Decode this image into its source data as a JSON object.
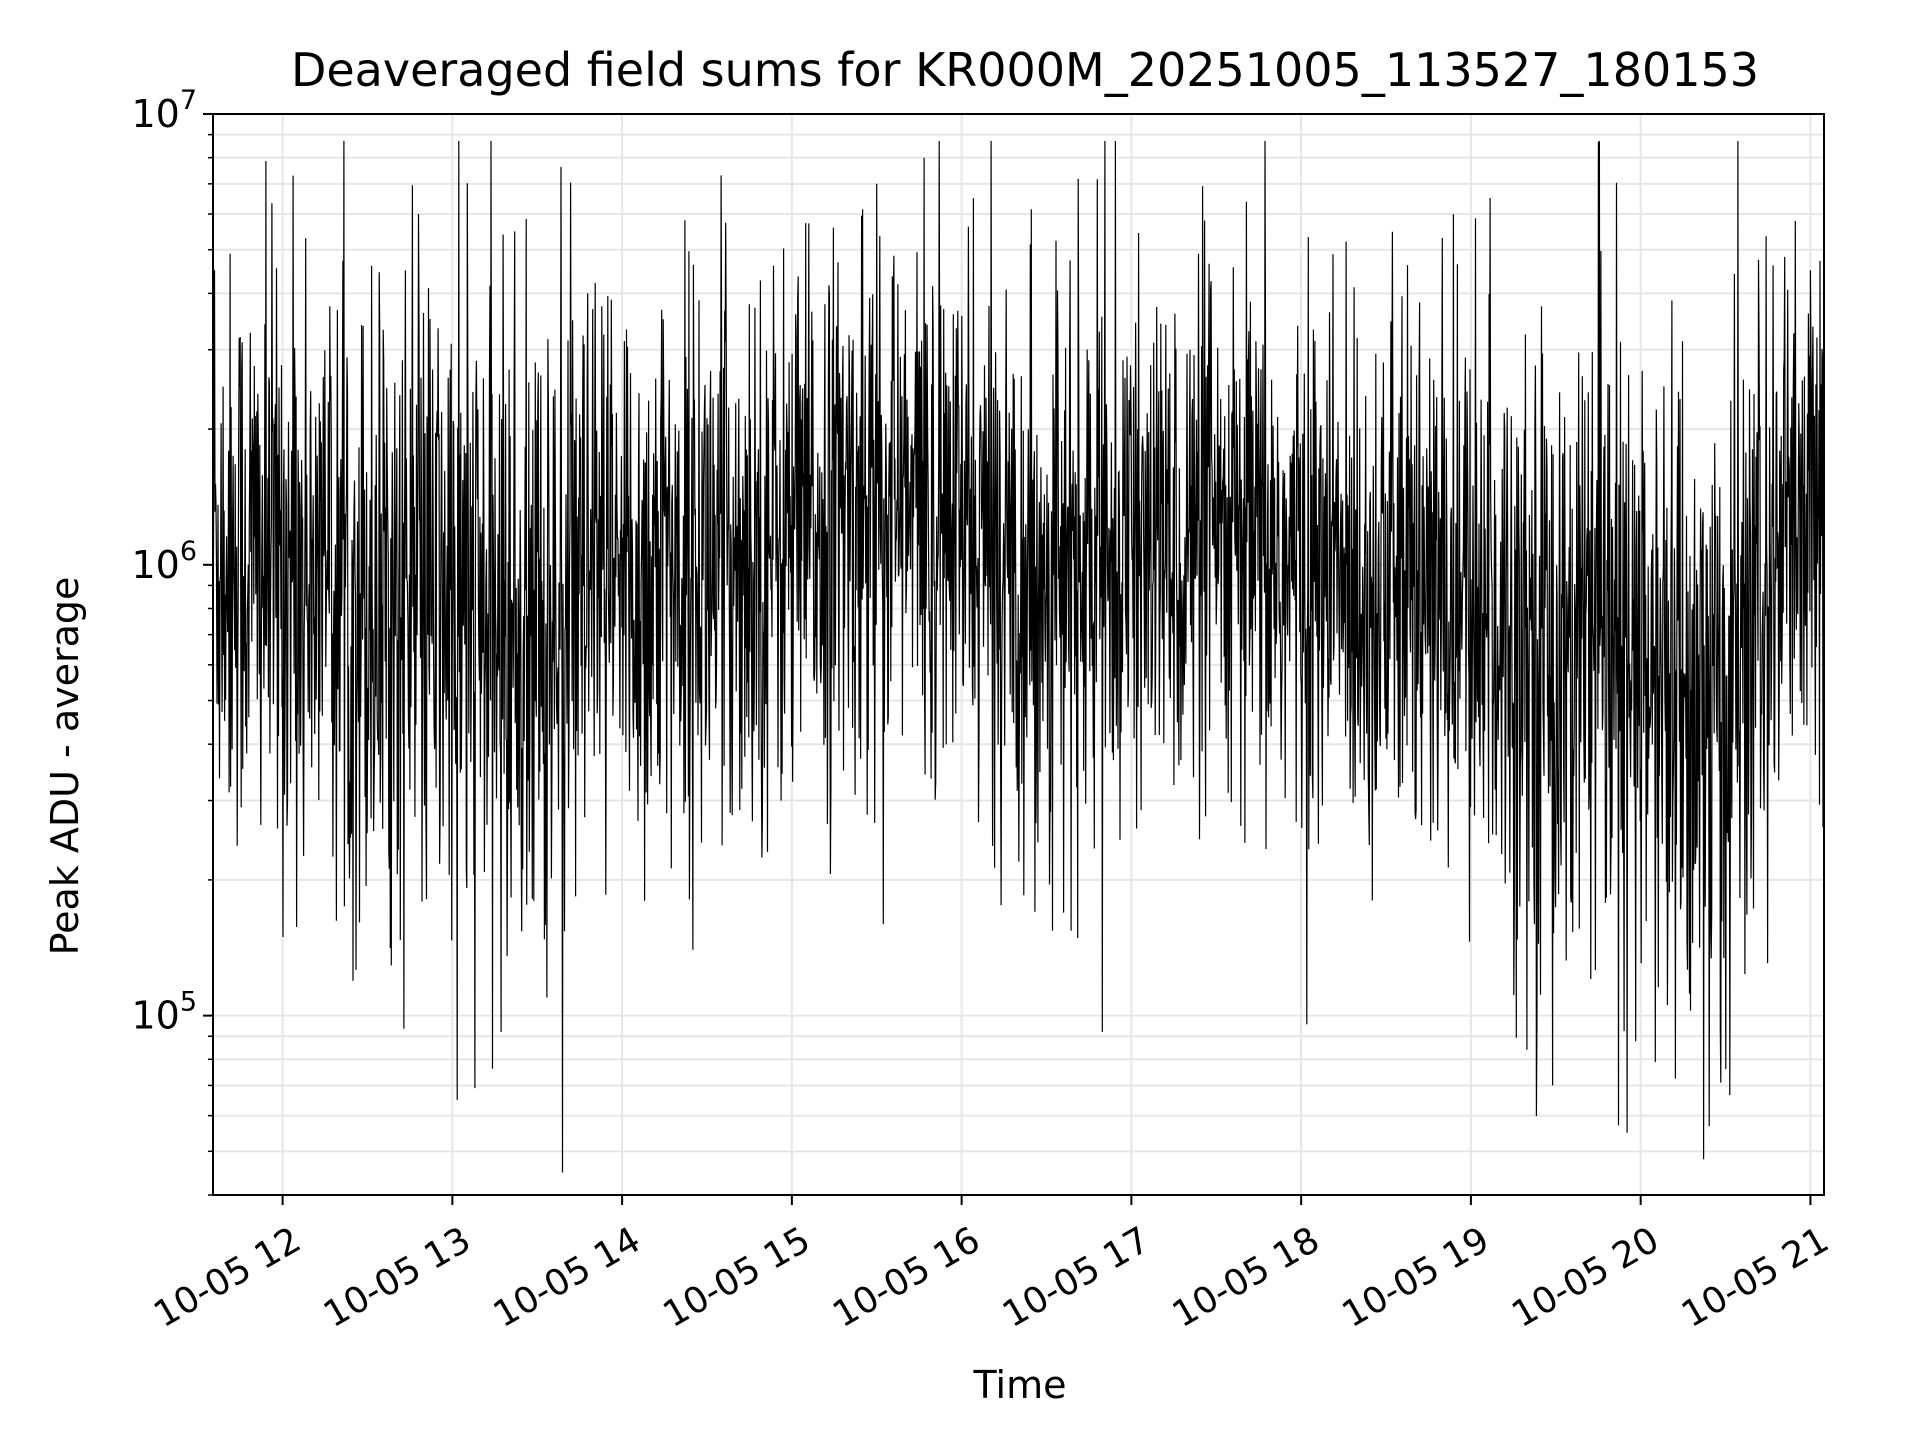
{
  "chart_data": {
    "type": "line",
    "title": "Deaveraged field sums for KR000M_20251005_113527_180153",
    "xlabel": "Time",
    "ylabel": "Peak ADU - average",
    "yscale": "log",
    "ylim": [
      40000,
      10000000
    ],
    "xlim_hours": [
      11.59,
      21.08
    ],
    "x_ticks": [
      {
        "hour": 12,
        "label": "10-05 12"
      },
      {
        "hour": 13,
        "label": "10-05 13"
      },
      {
        "hour": 14,
        "label": "10-05 14"
      },
      {
        "hour": 15,
        "label": "10-05 15"
      },
      {
        "hour": 16,
        "label": "10-05 16"
      },
      {
        "hour": 17,
        "label": "10-05 17"
      },
      {
        "hour": 18,
        "label": "10-05 18"
      },
      {
        "hour": 19,
        "label": "10-05 19"
      },
      {
        "hour": 20,
        "label": "10-05 20"
      },
      {
        "hour": 21,
        "label": "10-05 21"
      }
    ],
    "y_ticks": [
      {
        "value": 100000,
        "base": "10",
        "exp": "5"
      },
      {
        "value": 1000000,
        "base": "10",
        "exp": "6"
      },
      {
        "value": 10000000,
        "base": "10",
        "exp": "7"
      }
    ],
    "grid": true,
    "series": [
      {
        "name": "Peak ADU - average",
        "color": "#000000",
        "n_samples": 3200,
        "envelope": [
          {
            "hour": 11.59,
            "median": 1100000,
            "spread": 0.32
          },
          {
            "hour": 12.0,
            "median": 1000000,
            "spread": 0.34
          },
          {
            "hour": 12.5,
            "median": 850000,
            "spread": 0.36
          },
          {
            "hour": 13.0,
            "median": 800000,
            "spread": 0.36
          },
          {
            "hour": 13.5,
            "median": 650000,
            "spread": 0.38
          },
          {
            "hour": 14.0,
            "median": 900000,
            "spread": 0.34
          },
          {
            "hour": 14.5,
            "median": 1000000,
            "spread": 0.32
          },
          {
            "hour": 15.0,
            "median": 1150000,
            "spread": 0.3
          },
          {
            "hour": 15.5,
            "median": 1400000,
            "spread": 0.3
          },
          {
            "hour": 16.0,
            "median": 1200000,
            "spread": 0.28
          },
          {
            "hour": 16.5,
            "median": 900000,
            "spread": 0.32
          },
          {
            "hour": 17.0,
            "median": 1050000,
            "spread": 0.27
          },
          {
            "hour": 17.5,
            "median": 1100000,
            "spread": 0.3
          },
          {
            "hour": 18.0,
            "median": 950000,
            "spread": 0.3
          },
          {
            "hour": 18.5,
            "median": 900000,
            "spread": 0.3
          },
          {
            "hour": 19.0,
            "median": 800000,
            "spread": 0.32
          },
          {
            "hour": 19.5,
            "median": 650000,
            "spread": 0.36
          },
          {
            "hour": 20.0,
            "median": 550000,
            "spread": 0.38
          },
          {
            "hour": 20.5,
            "median": 450000,
            "spread": 0.4
          },
          {
            "hour": 20.8,
            "median": 1000000,
            "spread": 0.32
          },
          {
            "hour": 21.08,
            "median": 1200000,
            "spread": 0.3
          }
        ],
        "notable_points": [
          {
            "hour": 11.6,
            "value": 4500000
          },
          {
            "hour": 12.8,
            "value": 6000000
          },
          {
            "hour": 13.03,
            "value": 65000
          },
          {
            "hour": 15.5,
            "value": 7000000
          },
          {
            "hour": 15.78,
            "value": 8000000
          },
          {
            "hour": 16.07,
            "value": 6500000
          },
          {
            "hour": 16.83,
            "value": 92000
          },
          {
            "hour": 17.43,
            "value": 5800000
          },
          {
            "hour": 19.48,
            "value": 70000
          },
          {
            "hour": 19.92,
            "value": 55000
          },
          {
            "hour": 20.37,
            "value": 48000
          },
          {
            "hour": 21.0,
            "value": 4500000
          }
        ]
      }
    ]
  }
}
